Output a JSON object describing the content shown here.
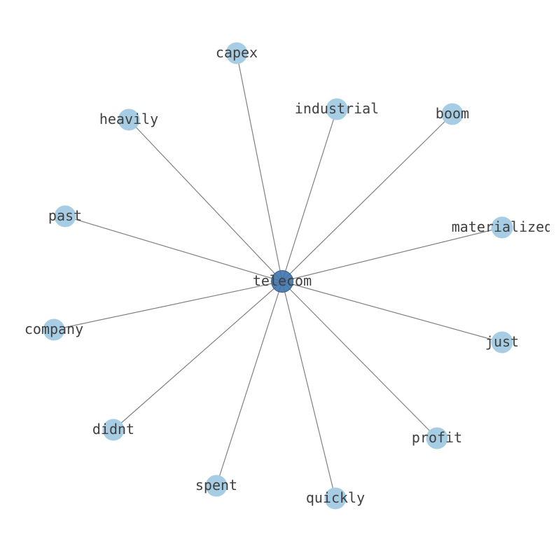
{
  "graph": {
    "center": {
      "id": "telecom",
      "label": "telecom",
      "color": "#3f74ad"
    },
    "leaf_color": "#a6cde3",
    "edge_color": "#808080",
    "nodes": [
      {
        "id": "capex",
        "label": "capex"
      },
      {
        "id": "industrial",
        "label": "industrial"
      },
      {
        "id": "boom",
        "label": "boom"
      },
      {
        "id": "materialized",
        "label": "materialized"
      },
      {
        "id": "just",
        "label": "just"
      },
      {
        "id": "profit",
        "label": "profit"
      },
      {
        "id": "quickly",
        "label": "quickly"
      },
      {
        "id": "spent",
        "label": "spent"
      },
      {
        "id": "didnt",
        "label": "didnt"
      },
      {
        "id": "company",
        "label": "company"
      },
      {
        "id": "past",
        "label": "past"
      },
      {
        "id": "heavily",
        "label": "heavily"
      }
    ]
  }
}
